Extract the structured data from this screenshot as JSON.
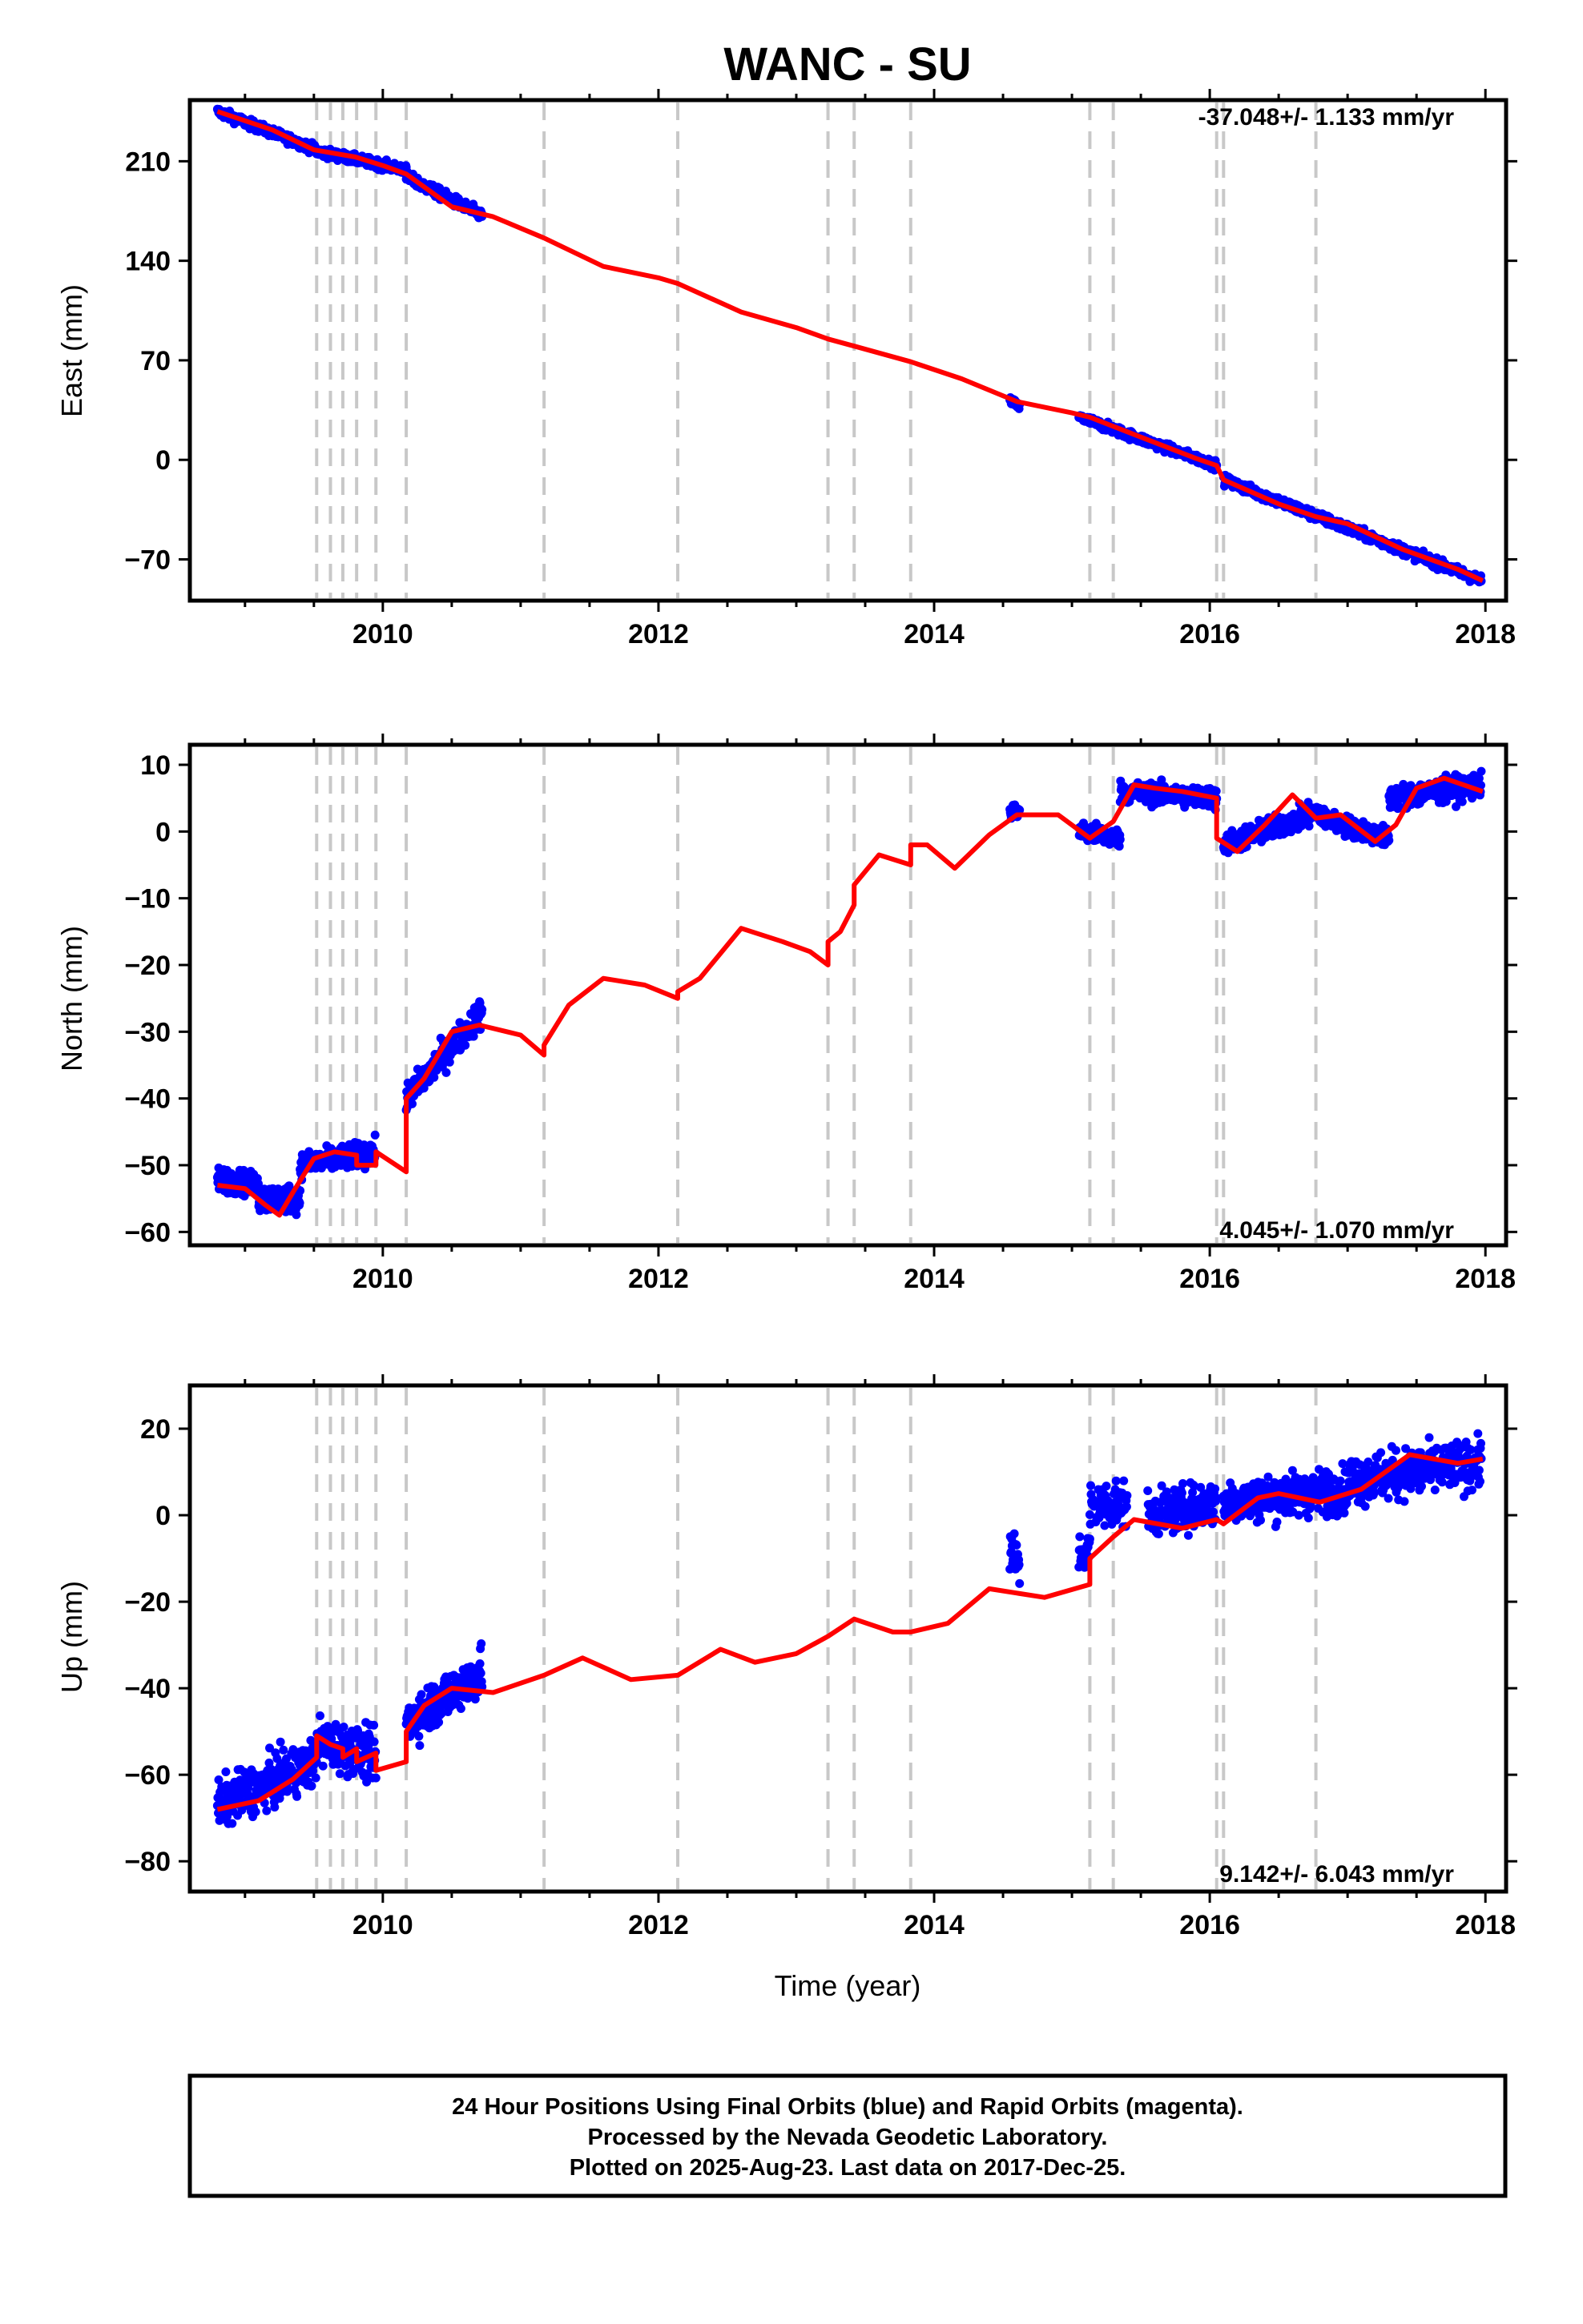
{
  "title": "WANC - SU",
  "colors": {
    "final_orbits": "#0000ff",
    "model_fit": "#ff0000",
    "event_line": "#c8c8c8"
  },
  "footer": {
    "line1": "24 Hour Positions Using Final Orbits (blue) and Rapid Orbits (magenta).",
    "line2": "Processed by the Nevada Geodetic Laboratory.",
    "line3": "Plotted on 2025-Aug-23. Last data on 2017-Dec-25."
  },
  "chart_data": [
    {
      "type": "scatter",
      "title": "WANC - SU",
      "ylabel": "East (mm)",
      "xlabel": "",
      "xlim": [
        2008.6,
        2018.15
      ],
      "ylim": [
        -99,
        253
      ],
      "xticks": [
        2010,
        2012,
        2014,
        2016,
        2018
      ],
      "yticks": [
        -70,
        0,
        70,
        140,
        210
      ],
      "rate": "-37.048+/- 1.133 mm/yr",
      "rate_position": "top-right",
      "event_lines": [
        2009.52,
        2009.62,
        2009.71,
        2009.81,
        2009.95,
        2010.17,
        2011.17,
        2012.14,
        2013.23,
        2013.42,
        2013.83,
        2015.13,
        2015.3,
        2016.05,
        2016.1,
        2016.77
      ],
      "model_series": {
        "name": "model",
        "x": [
          2008.8,
          2009.2,
          2009.5,
          2009.8,
          2010.0,
          2010.17,
          2010.5,
          2010.8,
          2011.17,
          2011.6,
          2012.0,
          2012.14,
          2012.6,
          2013.0,
          2013.23,
          2013.42,
          2013.83,
          2014.2,
          2014.6,
          2015.0,
          2015.13,
          2015.5,
          2015.9,
          2016.05,
          2016.1,
          2016.5,
          2016.77,
          2017.0,
          2017.4,
          2017.8,
          2017.98
        ],
        "y": [
          245,
          232,
          218,
          213,
          207,
          201,
          178,
          171,
          156,
          136,
          128,
          124,
          104,
          93,
          85,
          80,
          69,
          57,
          41,
          33,
          30,
          16,
          1,
          -4,
          -14,
          -31,
          -40,
          -45,
          -63,
          -77,
          -85
        ]
      },
      "observations": {
        "name": "Final Orbits",
        "segments": [
          {
            "x0": 2008.8,
            "x1": 2009.52,
            "y0": 245,
            "y1": 218,
            "noise": 3.2
          },
          {
            "x0": 2009.52,
            "x1": 2010.17,
            "y0": 217,
            "y1": 204,
            "noise": 3.2
          },
          {
            "x0": 2010.17,
            "x1": 2010.72,
            "y0": 199,
            "y1": 172,
            "noise": 3.8
          },
          {
            "x0": 2014.55,
            "x1": 2014.62,
            "y0": 42,
            "y1": 37,
            "noise": 2.5
          },
          {
            "x0": 2015.05,
            "x1": 2016.05,
            "y0": 30,
            "y1": -4,
            "noise": 3.0
          },
          {
            "x0": 2016.1,
            "x1": 2017.97,
            "y0": -14,
            "y1": -85,
            "noise": 3.4
          }
        ]
      }
    },
    {
      "type": "scatter",
      "title": "",
      "ylabel": "North (mm)",
      "xlabel": "",
      "xlim": [
        2008.6,
        2018.15
      ],
      "ylim": [
        -62,
        13
      ],
      "xticks": [
        2010,
        2012,
        2014,
        2016,
        2018
      ],
      "yticks": [
        -60,
        -50,
        -40,
        -30,
        -20,
        -10,
        0,
        10
      ],
      "rate": "4.045+/- 1.070 mm/yr",
      "rate_position": "bottom-right",
      "event_lines": [
        2009.52,
        2009.62,
        2009.71,
        2009.81,
        2009.95,
        2010.17,
        2011.17,
        2012.14,
        2013.23,
        2013.42,
        2013.83,
        2015.13,
        2015.3,
        2016.05,
        2016.1,
        2016.77
      ],
      "model_series": {
        "name": "model",
        "x": [
          2008.8,
          2009.0,
          2009.15,
          2009.25,
          2009.35,
          2009.5,
          2009.65,
          2009.81,
          2009.81,
          2009.95,
          2009.95,
          2010.17,
          2010.17,
          2010.3,
          2010.5,
          2010.7,
          2011.0,
          2011.17,
          2011.17,
          2011.35,
          2011.6,
          2011.9,
          2012.14,
          2012.14,
          2012.3,
          2012.6,
          2012.9,
          2013.1,
          2013.23,
          2013.23,
          2013.32,
          2013.42,
          2013.42,
          2013.6,
          2013.83,
          2013.83,
          2013.95,
          2014.15,
          2014.4,
          2014.6,
          2014.9,
          2015.13,
          2015.3,
          2015.45,
          2015.6,
          2015.8,
          2016.05,
          2016.05,
          2016.2,
          2016.4,
          2016.6,
          2016.77,
          2016.95,
          2017.2,
          2017.35,
          2017.5,
          2017.7,
          2017.98
        ],
        "y": [
          -53,
          -53.5,
          -56,
          -57.5,
          -54,
          -49,
          -48,
          -48.5,
          -50,
          -50,
          -48,
          -51,
          -40,
          -37,
          -30,
          -29,
          -30.5,
          -33.5,
          -32,
          -26,
          -22,
          -23,
          -25,
          -24,
          -22,
          -14.5,
          -16.5,
          -18,
          -20,
          -16.5,
          -15,
          -11,
          -8,
          -3.5,
          -5,
          -2,
          -2,
          -5.5,
          -0.5,
          2.5,
          2.5,
          -1,
          1.5,
          7,
          6.5,
          6,
          5,
          -1,
          -3,
          1,
          5.5,
          2,
          2.5,
          -1.5,
          1,
          6.5,
          8,
          6
        ]
      },
      "observations": {
        "name": "Final Orbits",
        "segments": [
          {
            "x0": 2008.8,
            "x1": 2009.1,
            "y0": -52,
            "y1": -53,
            "noise": 1.8
          },
          {
            "x0": 2009.1,
            "x1": 2009.4,
            "y0": -55,
            "y1": -55,
            "noise": 2.0
          },
          {
            "x0": 2009.4,
            "x1": 2009.95,
            "y0": -50,
            "y1": -48,
            "noise": 1.8
          },
          {
            "x0": 2010.17,
            "x1": 2010.72,
            "y0": -40,
            "y1": -27,
            "noise": 2.2
          },
          {
            "x0": 2014.55,
            "x1": 2014.62,
            "y0": 3,
            "y1": 3,
            "noise": 1.2
          },
          {
            "x0": 2015.05,
            "x1": 2015.35,
            "y0": 0,
            "y1": -1,
            "noise": 1.5
          },
          {
            "x0": 2015.35,
            "x1": 2016.05,
            "y0": 6,
            "y1": 5,
            "noise": 1.6
          },
          {
            "x0": 2016.1,
            "x1": 2016.8,
            "y0": -2,
            "y1": 3,
            "noise": 1.7
          },
          {
            "x0": 2016.8,
            "x1": 2017.3,
            "y0": 2,
            "y1": -1,
            "noise": 1.5
          },
          {
            "x0": 2017.3,
            "x1": 2017.97,
            "y0": 5,
            "y1": 7,
            "noise": 1.8
          }
        ]
      }
    },
    {
      "type": "scatter",
      "title": "",
      "ylabel": "Up (mm)",
      "xlabel": "Time (year)",
      "xlim": [
        2008.6,
        2018.15
      ],
      "ylim": [
        -87,
        30
      ],
      "xticks": [
        2010,
        2012,
        2014,
        2016,
        2018
      ],
      "yticks": [
        -80,
        -60,
        -40,
        -20,
        0,
        20
      ],
      "rate": "9.142+/- 6.043 mm/yr",
      "rate_position": "bottom-right",
      "event_lines": [
        2009.52,
        2009.62,
        2009.71,
        2009.81,
        2009.95,
        2010.17,
        2011.17,
        2012.14,
        2013.23,
        2013.42,
        2013.83,
        2015.13,
        2015.3,
        2016.05,
        2016.1,
        2016.77
      ],
      "model_series": {
        "name": "model",
        "x": [
          2008.8,
          2009.1,
          2009.35,
          2009.52,
          2009.52,
          2009.62,
          2009.71,
          2009.71,
          2009.81,
          2009.81,
          2009.95,
          2009.95,
          2010.17,
          2010.17,
          2010.3,
          2010.5,
          2010.8,
          2011.17,
          2011.45,
          2011.8,
          2012.14,
          2012.45,
          2012.7,
          2013.0,
          2013.23,
          2013.42,
          2013.7,
          2013.83,
          2014.1,
          2014.4,
          2014.6,
          2014.8,
          2015.13,
          2015.13,
          2015.3,
          2015.45,
          2015.8,
          2016.05,
          2016.1,
          2016.35,
          2016.5,
          2016.8,
          2017.1,
          2017.45,
          2017.8,
          2017.98
        ],
        "y": [
          -68,
          -66,
          -61,
          -56,
          -51,
          -53,
          -54,
          -56,
          -54,
          -57,
          -55,
          -59,
          -57,
          -50,
          -44,
          -40,
          -41,
          -37,
          -33,
          -38,
          -37,
          -31,
          -34,
          -32,
          -28,
          -24,
          -27,
          -27,
          -25,
          -17,
          -18,
          -19,
          -16,
          -10,
          -5,
          -1,
          -3,
          -1,
          -2,
          4,
          5,
          3,
          6,
          14,
          12,
          13
        ]
      },
      "observations": {
        "name": "Final Orbits",
        "segments": [
          {
            "x0": 2008.8,
            "x1": 2009.52,
            "y0": -67,
            "y1": -57,
            "noise": 5.5
          },
          {
            "x0": 2009.52,
            "x1": 2009.95,
            "y0": -52,
            "y1": -56,
            "noise": 5.5
          },
          {
            "x0": 2010.17,
            "x1": 2010.72,
            "y0": -48,
            "y1": -36,
            "noise": 5.5
          },
          {
            "x0": 2014.55,
            "x1": 2014.62,
            "y0": -8,
            "y1": -12,
            "noise": 6.0
          },
          {
            "x0": 2015.05,
            "x1": 2015.13,
            "y0": -9,
            "y1": -8,
            "noise": 4.5
          },
          {
            "x0": 2015.13,
            "x1": 2015.4,
            "y0": 2,
            "y1": 3,
            "noise": 5.5
          },
          {
            "x0": 2015.55,
            "x1": 2016.05,
            "y0": 0,
            "y1": 3,
            "noise": 5.0
          },
          {
            "x0": 2016.1,
            "x1": 2017.0,
            "y0": 3,
            "y1": 6,
            "noise": 5.0
          },
          {
            "x0": 2017.0,
            "x1": 2017.97,
            "y0": 8,
            "y1": 12,
            "noise": 5.5
          }
        ]
      }
    }
  ]
}
